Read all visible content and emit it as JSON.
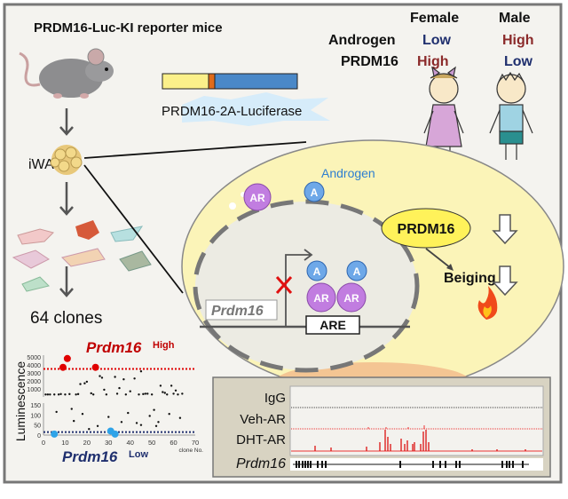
{
  "left": {
    "title": "PRDM16-Luc-KI reporter mice",
    "construct_label": "PRDM16-2A-Luciferase",
    "tissue_label": "iWAT",
    "clones_label": "64 clones"
  },
  "sex_table": {
    "female": "Female",
    "male": "Male",
    "androgen_label": "Androgen",
    "prdm16_label": "PRDM16",
    "female_androgen": "Low",
    "male_androgen": "High",
    "female_prdm16": "High",
    "male_prdm16": "Low",
    "colors": {
      "low": "#1f2f6e",
      "high": "#8b2a2a"
    }
  },
  "cell": {
    "androgen_label": "Androgen",
    "ar_label": "AR",
    "a_label": "A",
    "prdm16_label": "PRDM16",
    "beiging_label": "Beiging",
    "gene_label": "Prdm16",
    "element_label": "ARE"
  },
  "tracks": {
    "labels": [
      "IgG",
      "Veh-AR",
      "DHT-AR"
    ],
    "gene_label": "Prdm16"
  },
  "chart_data": {
    "type": "scatter",
    "xlabel": "clone No.",
    "ylabel": "Luminescence",
    "xlim": [
      0,
      70
    ],
    "x_ticks": [
      "0",
      "10",
      "20",
      "30",
      "40",
      "50",
      "60",
      "70"
    ],
    "y_upper_ticks": [
      "1000",
      "2000",
      "3000",
      "4000",
      "5000"
    ],
    "y_lower_ticks": [
      "0",
      "50",
      "100",
      "150"
    ],
    "broken_axis": true,
    "high_label": "Prdm16",
    "high_sup": "High",
    "low_label": "Prdm16",
    "low_sup": "Low",
    "high_threshold": 3500,
    "low_threshold": 15,
    "colors": {
      "high": "#e00000",
      "low": "#2ea3e8",
      "other": "#111111",
      "high_line": "#e00000",
      "low_line": "#1f2f6e"
    },
    "upper_points": [
      [
        1,
        300
      ],
      [
        2,
        300
      ],
      [
        3,
        300
      ],
      [
        5,
        300
      ],
      [
        7,
        300
      ],
      [
        8,
        350
      ],
      [
        10,
        300
      ],
      [
        12,
        350
      ],
      [
        15,
        300
      ],
      [
        16,
        350
      ],
      [
        17,
        1600
      ],
      [
        19,
        1700
      ],
      [
        20,
        1900
      ],
      [
        22,
        450
      ],
      [
        23,
        300
      ],
      [
        26,
        2600
      ],
      [
        27,
        2400
      ],
      [
        28,
        900
      ],
      [
        29,
        300
      ],
      [
        33,
        2500
      ],
      [
        34,
        400
      ],
      [
        35,
        1100
      ],
      [
        37,
        2200
      ],
      [
        38,
        300
      ],
      [
        40,
        700
      ],
      [
        42,
        2300
      ],
      [
        44,
        300
      ],
      [
        45,
        3200
      ],
      [
        46,
        350
      ],
      [
        47,
        400
      ],
      [
        48,
        400
      ],
      [
        50,
        300
      ],
      [
        54,
        1400
      ],
      [
        55,
        600
      ],
      [
        56,
        500
      ],
      [
        57,
        300
      ],
      [
        59,
        1400
      ],
      [
        60,
        400
      ],
      [
        61,
        800
      ],
      [
        62,
        300
      ],
      [
        64,
        400
      ]
    ],
    "high_points": [
      [
        9,
        3700
      ],
      [
        11,
        4800
      ],
      [
        24,
        3700
      ]
    ],
    "lower_points": [
      [
        6,
        115
      ],
      [
        13,
        130
      ],
      [
        14,
        70
      ],
      [
        18,
        105
      ],
      [
        21,
        30
      ],
      [
        25,
        45
      ],
      [
        30,
        90
      ],
      [
        36,
        65
      ],
      [
        39,
        110
      ],
      [
        43,
        60
      ],
      [
        45,
        50
      ],
      [
        49,
        95
      ],
      [
        51,
        125
      ],
      [
        52,
        45
      ],
      [
        53,
        65
      ],
      [
        58,
        105
      ],
      [
        63,
        85
      ]
    ],
    "low_points": [
      [
        5,
        5
      ],
      [
        31,
        20
      ],
      [
        33,
        5
      ]
    ]
  }
}
